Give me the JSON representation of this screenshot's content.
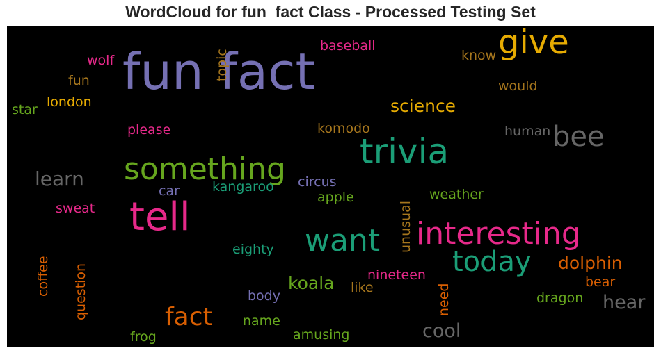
{
  "title": "WordCloud for fun_fact Class - Processed Testing Set",
  "chart_data": {
    "type": "wordcloud",
    "title": "WordCloud for fun_fact Class - Processed Testing Set",
    "background": "#000000",
    "palette": "Dark2",
    "words": [
      {
        "text": "fun fact",
        "color": "#7570b3",
        "orientation": "horizontal"
      },
      {
        "text": "give",
        "color": "#e6ab02",
        "orientation": "horizontal"
      },
      {
        "text": "trivia",
        "color": "#1b9e77",
        "orientation": "horizontal"
      },
      {
        "text": "something",
        "color": "#66a61e",
        "orientation": "horizontal"
      },
      {
        "text": "tell",
        "color": "#e7298a",
        "orientation": "horizontal"
      },
      {
        "text": "interesting",
        "color": "#e7298a",
        "orientation": "horizontal"
      },
      {
        "text": "want",
        "color": "#1b9e77",
        "orientation": "horizontal"
      },
      {
        "text": "today",
        "color": "#1b9e77",
        "orientation": "horizontal"
      },
      {
        "text": "bee",
        "color": "#666666",
        "orientation": "horizontal"
      },
      {
        "text": "fact",
        "color": "#d95f02",
        "orientation": "horizontal"
      },
      {
        "text": "science",
        "color": "#e6ab02",
        "orientation": "horizontal"
      },
      {
        "text": "learn",
        "color": "#666666",
        "orientation": "horizontal"
      },
      {
        "text": "dolphin",
        "color": "#d95f02",
        "orientation": "horizontal"
      },
      {
        "text": "koala",
        "color": "#66a61e",
        "orientation": "horizontal"
      },
      {
        "text": "cool",
        "color": "#666666",
        "orientation": "horizontal"
      },
      {
        "text": "hear",
        "color": "#666666",
        "orientation": "horizontal"
      },
      {
        "text": "baseball",
        "color": "#e7298a",
        "orientation": "horizontal"
      },
      {
        "text": "wolf",
        "color": "#e7298a",
        "orientation": "horizontal"
      },
      {
        "text": "fun",
        "color": "#a6761d",
        "orientation": "horizontal"
      },
      {
        "text": "london",
        "color": "#e6ab02",
        "orientation": "horizontal"
      },
      {
        "text": "star",
        "color": "#66a61e",
        "orientation": "horizontal"
      },
      {
        "text": "topic",
        "color": "#a6761d",
        "orientation": "vertical"
      },
      {
        "text": "know",
        "color": "#a6761d",
        "orientation": "horizontal"
      },
      {
        "text": "would",
        "color": "#a6761d",
        "orientation": "horizontal"
      },
      {
        "text": "please",
        "color": "#e7298a",
        "orientation": "horizontal"
      },
      {
        "text": "komodo",
        "color": "#a6761d",
        "orientation": "horizontal"
      },
      {
        "text": "human",
        "color": "#666666",
        "orientation": "horizontal"
      },
      {
        "text": "car",
        "color": "#7570b3",
        "orientation": "horizontal"
      },
      {
        "text": "kangaroo",
        "color": "#1b9e77",
        "orientation": "horizontal"
      },
      {
        "text": "circus",
        "color": "#7570b3",
        "orientation": "horizontal"
      },
      {
        "text": "weather",
        "color": "#66a61e",
        "orientation": "horizontal"
      },
      {
        "text": "apple",
        "color": "#66a61e",
        "orientation": "horizontal"
      },
      {
        "text": "sweat",
        "color": "#e7298a",
        "orientation": "horizontal"
      },
      {
        "text": "unusual",
        "color": "#a6761d",
        "orientation": "vertical"
      },
      {
        "text": "eighty",
        "color": "#1b9e77",
        "orientation": "horizontal"
      },
      {
        "text": "coffee",
        "color": "#d95f02",
        "orientation": "vertical"
      },
      {
        "text": "question",
        "color": "#d95f02",
        "orientation": "vertical"
      },
      {
        "text": "nineteen",
        "color": "#e7298a",
        "orientation": "horizontal"
      },
      {
        "text": "like",
        "color": "#a6761d",
        "orientation": "horizontal"
      },
      {
        "text": "bear",
        "color": "#d95f02",
        "orientation": "horizontal"
      },
      {
        "text": "need",
        "color": "#d95f02",
        "orientation": "vertical"
      },
      {
        "text": "body",
        "color": "#7570b3",
        "orientation": "horizontal"
      },
      {
        "text": "dragon",
        "color": "#66a61e",
        "orientation": "horizontal"
      },
      {
        "text": "name",
        "color": "#66a61e",
        "orientation": "horizontal"
      },
      {
        "text": "frog",
        "color": "#66a61e",
        "orientation": "horizontal"
      },
      {
        "text": "amusing",
        "color": "#66a61e",
        "orientation": "horizontal"
      }
    ]
  }
}
